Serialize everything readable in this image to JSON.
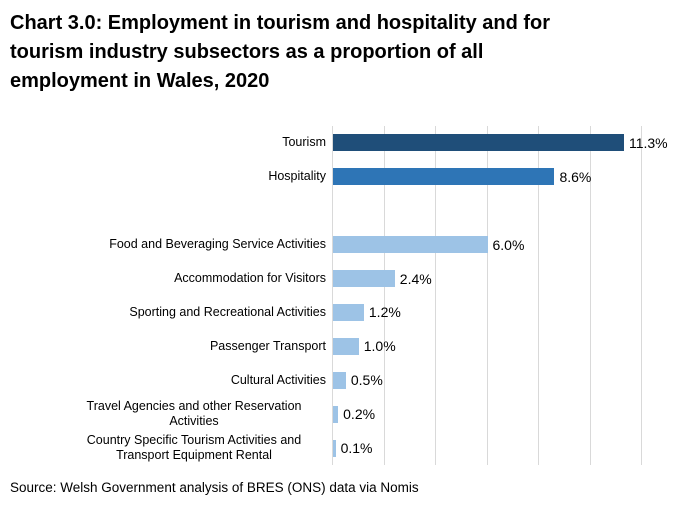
{
  "title": {
    "text": "Chart 3.0: Employment in tourism and hospitality and for tourism industry subsectors as a proportion of all employment in Wales, 2020",
    "lines": [
      "Chart 3.0: Employment in tourism and hospitality and for",
      "tourism industry subsectors as a proportion of all",
      "employment in Wales, 2020"
    ]
  },
  "source": "Source: Welsh Government analysis of BRES (ONS) data via Nomis",
  "colors": {
    "tourism_dark_blue": "#1F4E79",
    "hospitality_mid_blue": "#2E75B6",
    "subsector_light_blue": "#9DC3E6",
    "gridline_gray": "#D9D9D9",
    "text_black": "#000000",
    "background": "#FFFFFF"
  },
  "chart_data": {
    "type": "bar",
    "orientation": "horizontal",
    "title": "Chart 3.0: Employment in tourism and hospitality and for tourism industry subsectors as a proportion of all employment in Wales, 2020",
    "categories": [
      "Tourism",
      "Hospitality",
      "Food and Beveraging Service Activities",
      "Accommodation for Visitors",
      "Sporting and Recreational Activities",
      "Passenger Transport",
      "Cultural Activities",
      "Travel Agencies and other Reservation Activities",
      "Country Specific Tourism Activities and Transport Equipment Rental"
    ],
    "values": [
      11.3,
      8.6,
      6.0,
      2.4,
      1.2,
      1.0,
      0.5,
      0.2,
      0.1
    ],
    "data_labels": [
      "11.3%",
      "8.6%",
      "6.0%",
      "2.4%",
      "1.2%",
      "1.0%",
      "0.5%",
      "0.2%",
      "0.1%"
    ],
    "bar_colors": [
      "#1F4E79",
      "#2E75B6",
      "#9DC3E6",
      "#9DC3E6",
      "#9DC3E6",
      "#9DC3E6",
      "#9DC3E6",
      "#9DC3E6",
      "#9DC3E6"
    ],
    "xlabel": "",
    "ylabel": "",
    "xlim": [
      0,
      12
    ],
    "tick_interval": 2,
    "grid": true,
    "gridline_color": "#D9D9D9",
    "axis_tick_labels_visible": false,
    "legend": "none",
    "group_break_after_index": 1
  }
}
